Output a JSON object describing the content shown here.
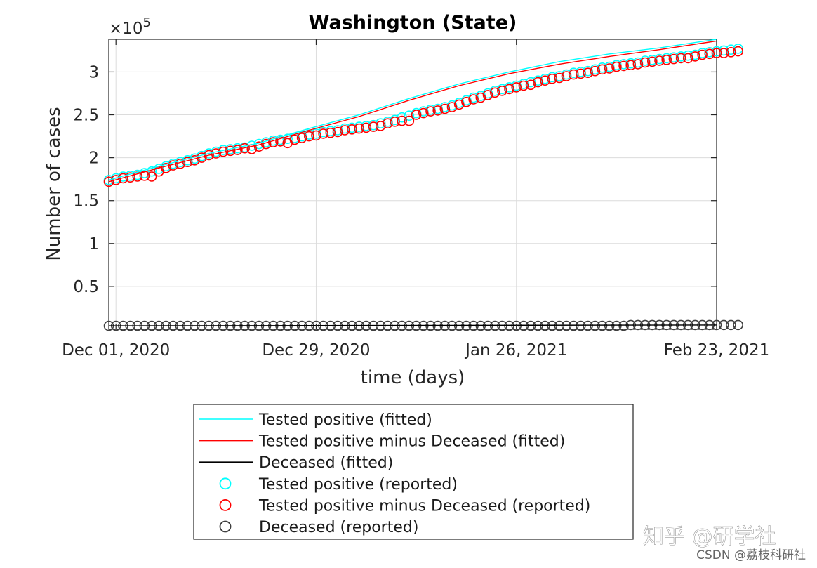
{
  "chart_data": {
    "type": "scatter",
    "title": "Washington (State)",
    "xlabel": "time (days)",
    "ylabel": "Number of cases",
    "y_multiplier": "×10",
    "y_multiplier_exp": "5",
    "x_range": [
      "2020-11-30",
      "2021-02-23"
    ],
    "ylim": [
      0,
      3.38
    ],
    "xticks": [
      {
        "date": "2020-12-01",
        "label": "Dec 01, 2020"
      },
      {
        "date": "2020-12-29",
        "label": "Dec 29, 2020"
      },
      {
        "date": "2021-01-26",
        "label": "Jan 26, 2021"
      },
      {
        "date": "2021-02-23",
        "label": "Feb 23, 2021"
      }
    ],
    "yticks": [
      {
        "value": 0.5,
        "label": "0.5"
      },
      {
        "value": 1,
        "label": "1"
      },
      {
        "value": 1.5,
        "label": "1.5"
      },
      {
        "value": 2,
        "label": "2"
      },
      {
        "value": 2.5,
        "label": "2.5"
      },
      {
        "value": 3,
        "label": "3"
      }
    ],
    "grid": true,
    "legend_position": "below",
    "series": [
      {
        "name": "Tested positive  (fitted)",
        "kind": "line",
        "color": "#00ffff",
        "x": [
          "2020-11-30",
          "2020-12-07",
          "2020-12-14",
          "2020-12-21",
          "2020-12-28",
          "2021-01-04",
          "2021-01-11",
          "2021-01-18",
          "2021-01-25",
          "2021-02-01",
          "2021-02-08",
          "2021-02-15",
          "2021-02-23"
        ],
        "y": [
          1.74,
          1.9,
          2.05,
          2.17,
          2.34,
          2.5,
          2.69,
          2.86,
          3.0,
          3.12,
          3.21,
          3.28,
          3.38
        ]
      },
      {
        "name": "Tested positive minus Deceased (fitted)",
        "kind": "line",
        "color": "#ff0000",
        "x": [
          "2020-11-30",
          "2020-12-07",
          "2020-12-14",
          "2020-12-21",
          "2020-12-28",
          "2021-01-04",
          "2021-01-11",
          "2021-01-18",
          "2021-01-25",
          "2021-02-01",
          "2021-02-08",
          "2021-02-15",
          "2021-02-23"
        ],
        "y": [
          1.72,
          1.88,
          2.03,
          2.15,
          2.32,
          2.48,
          2.67,
          2.84,
          2.98,
          3.09,
          3.18,
          3.26,
          3.36
        ]
      },
      {
        "name": "Deceased (fitted)",
        "kind": "line",
        "color": "#000000",
        "x": [
          "2020-11-30",
          "2021-02-23"
        ],
        "y": [
          0.04,
          0.05
        ]
      },
      {
        "name": "Tested positive (reported)",
        "kind": "marker",
        "color": "#00ffff",
        "x_start": "2020-11-30",
        "x_step_days": 1,
        "y": [
          1.74,
          1.76,
          1.78,
          1.79,
          1.8,
          1.82,
          1.84,
          1.87,
          1.9,
          1.93,
          1.95,
          1.97,
          1.99,
          2.02,
          2.05,
          2.07,
          2.09,
          2.1,
          2.11,
          2.12,
          2.14,
          2.16,
          2.18,
          2.2,
          2.21,
          2.22,
          2.23,
          2.25,
          2.27,
          2.28,
          2.3,
          2.31,
          2.32,
          2.34,
          2.35,
          2.36,
          2.37,
          2.38,
          2.4,
          2.42,
          2.44,
          2.47,
          2.49,
          2.52,
          2.54,
          2.56,
          2.57,
          2.59,
          2.61,
          2.64,
          2.67,
          2.7,
          2.72,
          2.75,
          2.78,
          2.8,
          2.82,
          2.84,
          2.86,
          2.88,
          2.9,
          2.92,
          2.94,
          2.95,
          2.97,
          2.99,
          3.0,
          3.01,
          3.03,
          3.05,
          3.06,
          3.08,
          3.09,
          3.1,
          3.11,
          3.13,
          3.14,
          3.15,
          3.16,
          3.17,
          3.18,
          3.19,
          3.2,
          3.22,
          3.23,
          3.24,
          3.25,
          3.26,
          3.27
        ]
      },
      {
        "name": "Tested positive minus Deceased   (reported)",
        "kind": "marker",
        "color": "#ff0000",
        "x_start": "2020-11-30",
        "x_step_days": 1,
        "y": [
          1.72,
          1.74,
          1.76,
          1.77,
          1.78,
          1.79,
          1.78,
          1.84,
          1.88,
          1.91,
          1.93,
          1.95,
          1.97,
          2.0,
          2.03,
          2.05,
          2.07,
          2.08,
          2.09,
          2.11,
          2.1,
          2.13,
          2.16,
          2.18,
          2.19,
          2.17,
          2.21,
          2.23,
          2.25,
          2.26,
          2.28,
          2.29,
          2.3,
          2.32,
          2.33,
          2.34,
          2.35,
          2.36,
          2.37,
          2.4,
          2.42,
          2.43,
          2.43,
          2.5,
          2.52,
          2.54,
          2.55,
          2.57,
          2.59,
          2.62,
          2.65,
          2.68,
          2.7,
          2.73,
          2.76,
          2.78,
          2.8,
          2.82,
          2.84,
          2.85,
          2.88,
          2.9,
          2.92,
          2.93,
          2.95,
          2.97,
          2.98,
          2.99,
          3.01,
          3.03,
          3.04,
          3.06,
          3.07,
          3.08,
          3.09,
          3.11,
          3.12,
          3.13,
          3.14,
          3.15,
          3.16,
          3.16,
          3.18,
          3.2,
          3.21,
          3.22,
          3.22,
          3.23,
          3.24
        ]
      },
      {
        "name": "Deceased  (reported)",
        "kind": "marker",
        "color": "#404040",
        "x_start": "2020-11-30",
        "x_step_days": 1,
        "y": [
          0.04,
          0.04,
          0.04,
          0.04,
          0.04,
          0.04,
          0.04,
          0.04,
          0.04,
          0.04,
          0.04,
          0.04,
          0.04,
          0.04,
          0.04,
          0.04,
          0.04,
          0.04,
          0.04,
          0.04,
          0.04,
          0.04,
          0.04,
          0.04,
          0.04,
          0.04,
          0.04,
          0.04,
          0.04,
          0.04,
          0.04,
          0.04,
          0.04,
          0.04,
          0.04,
          0.04,
          0.04,
          0.04,
          0.04,
          0.04,
          0.04,
          0.04,
          0.04,
          0.04,
          0.04,
          0.04,
          0.04,
          0.04,
          0.04,
          0.04,
          0.04,
          0.04,
          0.04,
          0.04,
          0.04,
          0.04,
          0.04,
          0.04,
          0.04,
          0.04,
          0.04,
          0.04,
          0.04,
          0.04,
          0.04,
          0.04,
          0.04,
          0.04,
          0.04,
          0.04,
          0.04,
          0.04,
          0.04,
          0.05,
          0.05,
          0.05,
          0.05,
          0.05,
          0.05,
          0.05,
          0.05,
          0.05,
          0.05,
          0.05,
          0.05,
          0.05,
          0.05,
          0.05,
          0.05
        ]
      }
    ]
  },
  "legend": [
    {
      "label": "Tested positive  (fitted)",
      "kind": "line",
      "color": "#00ffff"
    },
    {
      "label": "Tested positive minus Deceased (fitted)",
      "kind": "line",
      "color": "#ff0000"
    },
    {
      "label": "Deceased (fitted)",
      "kind": "line",
      "color": "#000000"
    },
    {
      "label": "Tested positive (reported)",
      "kind": "marker",
      "color": "#00ffff"
    },
    {
      "label": "Tested positive minus Deceased   (reported)",
      "kind": "marker",
      "color": "#ff0000"
    },
    {
      "label": "Deceased  (reported)",
      "kind": "marker",
      "color": "#404040"
    }
  ],
  "watermark": {
    "main": "知乎 @研学社",
    "sub": "CSDN @荔枝科研社"
  }
}
